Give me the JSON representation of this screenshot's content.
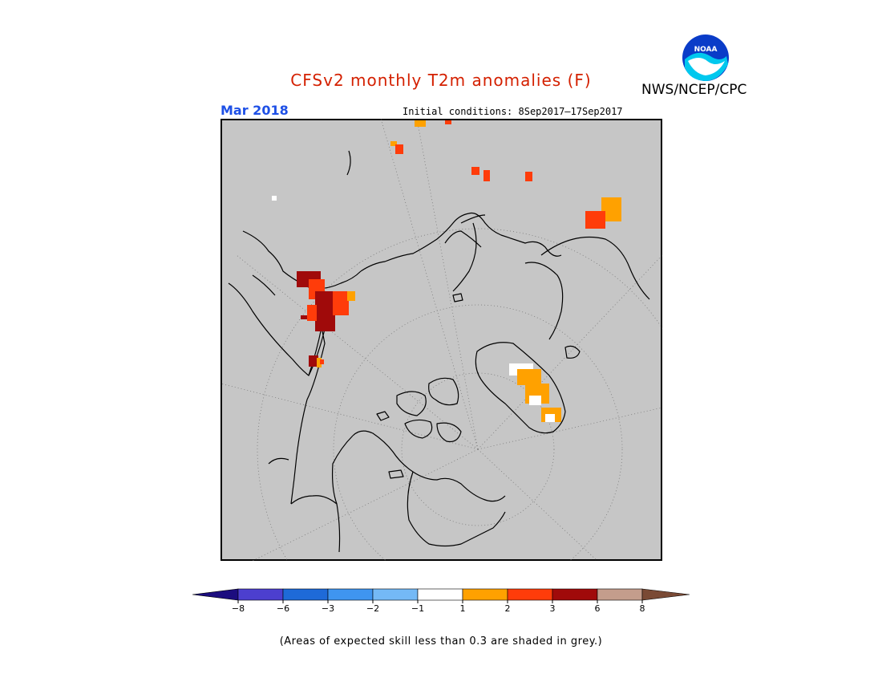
{
  "title": "CFSv2 monthly T2m anomalies (F)",
  "agency": "NWS/NCEP/CPC",
  "logo_text": "NOAA",
  "valid_month": "Mar 2018",
  "initial_conditions": "Initial conditions: 8Sep2017–17Sep2017",
  "note": "(Areas of expected skill less than 0.3 are shaded in grey.)",
  "colors": {
    "title": "#d42000",
    "month": "#1e50e6",
    "map_background": "#c6c6c6",
    "grid": "#7a7a7a",
    "coast": "#000000"
  },
  "colorbar": {
    "ticks": [
      "−8",
      "−6",
      "−3",
      "−2",
      "−1",
      "1",
      "2",
      "3",
      "6",
      "8"
    ],
    "colors": [
      "#1c0d7f",
      "#4c3fcf",
      "#1e6ad8",
      "#3f95f0",
      "#74b9f6",
      "#ffffff",
      "#ffa100",
      "#ff3c0a",
      "#a00a0a",
      "#c49d8c",
      "#7a4a35"
    ]
  }
}
